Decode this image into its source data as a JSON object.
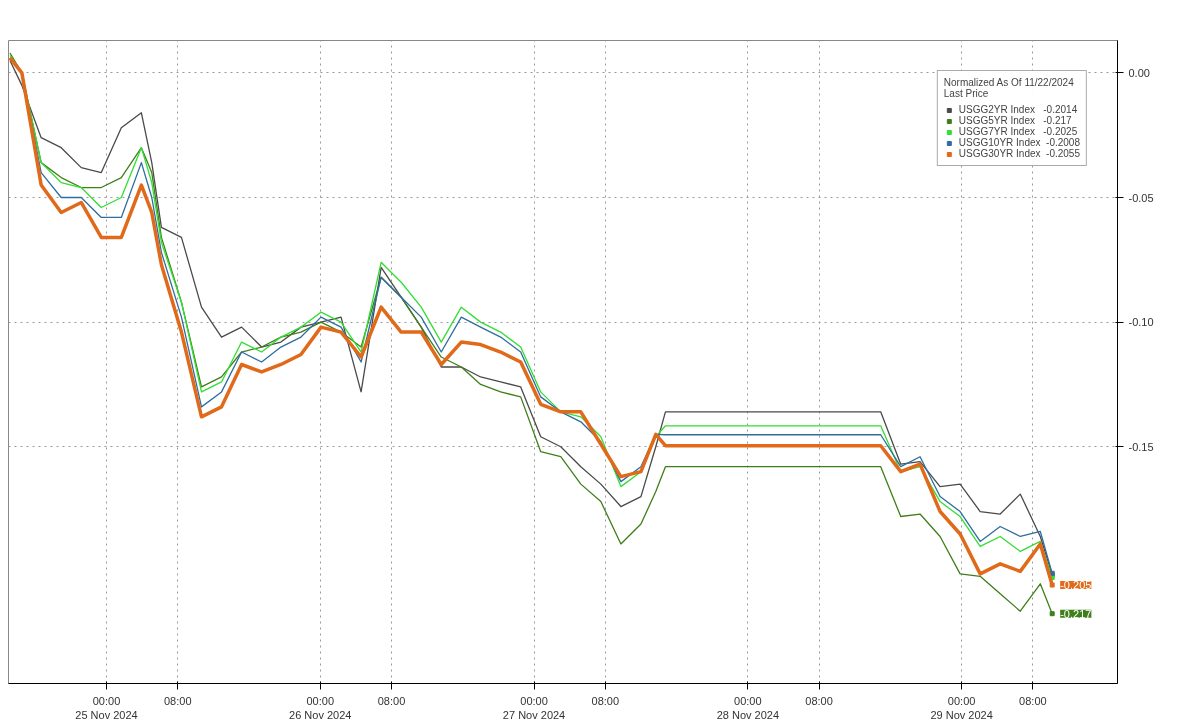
{
  "chart_data": {
    "type": "line",
    "legend_title": "Normalized As Of 11/22/2024\nLast Price",
    "legend": "top right",
    "grid": true,
    "line_style": "solid",
    "x": [
      "2024-11-24T13:10",
      "2024-11-24T14:30",
      "2024-11-24T16:40",
      "2024-11-24T18:55",
      "2024-11-24T21:10",
      "2024-11-24T23:25",
      "2024-11-25T01:40",
      "2024-11-25T03:55",
      "2024-11-25T05:05",
      "2024-11-25T06:10",
      "2024-11-25T08:25",
      "2024-11-25T10:40",
      "2024-11-25T12:55",
      "2024-11-25T15:10",
      "2024-11-25T17:25",
      "2024-11-25T19:35",
      "2024-11-25T21:50",
      "2024-11-26T00:05",
      "2024-11-26T02:20",
      "2024-11-26T04:35",
      "2024-11-26T06:50",
      "2024-11-26T09:05",
      "2024-11-26T11:20",
      "2024-11-26T13:35",
      "2024-11-26T15:50",
      "2024-11-26T18:00",
      "2024-11-26T20:15",
      "2024-11-26T22:30",
      "2024-11-27T00:45",
      "2024-11-27T03:00",
      "2024-11-27T05:15",
      "2024-11-27T07:30",
      "2024-11-27T09:45",
      "2024-11-27T12:00",
      "2024-11-27T13:40",
      "2024-11-27T14:45",
      "2024-11-28T14:55",
      "2024-11-28T17:10",
      "2024-11-28T19:20",
      "2024-11-28T21:35",
      "2024-11-28T23:50",
      "2024-11-29T02:05",
      "2024-11-29T04:20",
      "2024-11-29T06:35",
      "2024-11-29T08:50",
      "2024-11-29T10:10"
    ],
    "series": [
      {
        "name": "USGG2YR Index   -0.2014",
        "color": "#4a4a4a",
        "values": [
          0.005,
          -0.005,
          -0.026,
          -0.03,
          -0.038,
          -0.04,
          -0.022,
          -0.016,
          -0.036,
          -0.062,
          -0.066,
          -0.094,
          -0.106,
          -0.102,
          -0.11,
          -0.108,
          -0.102,
          -0.1,
          -0.098,
          -0.128,
          -0.078,
          -0.09,
          -0.102,
          -0.118,
          -0.118,
          -0.122,
          -0.124,
          -0.126,
          -0.146,
          -0.15,
          -0.158,
          -0.165,
          -0.174,
          -0.17,
          -0.15,
          -0.136,
          -0.136,
          -0.157,
          -0.156,
          -0.166,
          -0.165,
          -0.176,
          -0.177,
          -0.169,
          -0.186,
          -0.2014
        ]
      },
      {
        "name": "USGG5YR Index   -0.217",
        "color": "#3f7f1a",
        "values": [
          0.008,
          0.0,
          -0.036,
          -0.042,
          -0.046,
          -0.046,
          -0.042,
          -0.03,
          -0.04,
          -0.066,
          -0.092,
          -0.126,
          -0.122,
          -0.112,
          -0.11,
          -0.106,
          -0.104,
          -0.1,
          -0.104,
          -0.11,
          -0.082,
          -0.09,
          -0.102,
          -0.114,
          -0.118,
          -0.125,
          -0.128,
          -0.13,
          -0.152,
          -0.154,
          -0.165,
          -0.172,
          -0.189,
          -0.181,
          -0.168,
          -0.158,
          -0.158,
          -0.178,
          -0.177,
          -0.186,
          -0.201,
          -0.202,
          -0.209,
          -0.216,
          -0.205,
          -0.217
        ]
      },
      {
        "name": "USGG7YR Index   -0.2025",
        "color": "#33dd33",
        "values": [
          0.007,
          0.0,
          -0.036,
          -0.044,
          -0.046,
          -0.054,
          -0.05,
          -0.03,
          -0.044,
          -0.068,
          -0.092,
          -0.128,
          -0.124,
          -0.108,
          -0.112,
          -0.106,
          -0.102,
          -0.096,
          -0.1,
          -0.112,
          -0.076,
          -0.084,
          -0.094,
          -0.108,
          -0.094,
          -0.1,
          -0.104,
          -0.11,
          -0.128,
          -0.136,
          -0.138,
          -0.146,
          -0.166,
          -0.16,
          -0.146,
          -0.1416,
          -0.1416,
          -0.16,
          -0.158,
          -0.172,
          -0.178,
          -0.19,
          -0.186,
          -0.192,
          -0.188,
          -0.2025
        ]
      },
      {
        "name": "USGG10YR Index  -0.2008",
        "color": "#2e6e9e",
        "values": [
          0.006,
          0.0,
          -0.04,
          -0.05,
          -0.05,
          -0.058,
          -0.058,
          -0.036,
          -0.05,
          -0.072,
          -0.098,
          -0.134,
          -0.128,
          -0.112,
          -0.116,
          -0.11,
          -0.106,
          -0.098,
          -0.102,
          -0.116,
          -0.082,
          -0.09,
          -0.098,
          -0.112,
          -0.098,
          -0.102,
          -0.106,
          -0.112,
          -0.13,
          -0.136,
          -0.14,
          -0.148,
          -0.164,
          -0.158,
          -0.145,
          -0.1452,
          -0.1452,
          -0.158,
          -0.154,
          -0.17,
          -0.176,
          -0.188,
          -0.182,
          -0.186,
          -0.184,
          -0.2008
        ]
      },
      {
        "name": "USGG30YR Index  -0.2055",
        "color": "#e06a1a",
        "values": [
          0.006,
          0.0,
          -0.045,
          -0.056,
          -0.052,
          -0.066,
          -0.066,
          -0.045,
          -0.056,
          -0.077,
          -0.104,
          -0.138,
          -0.134,
          -0.117,
          -0.12,
          -0.117,
          -0.113,
          -0.102,
          -0.104,
          -0.114,
          -0.094,
          -0.104,
          -0.104,
          -0.117,
          -0.108,
          -0.109,
          -0.112,
          -0.116,
          -0.133,
          -0.136,
          -0.136,
          -0.149,
          -0.162,
          -0.16,
          -0.145,
          -0.1496,
          -0.1496,
          -0.16,
          -0.157,
          -0.176,
          -0.185,
          -0.201,
          -0.197,
          -0.2,
          -0.189,
          -0.2055
        ]
      }
    ],
    "xlim": [
      "2024-11-24T13:00",
      "2024-11-29T17:30"
    ],
    "xticks": [
      {
        "value": "2024-11-25T00:00",
        "label": "00:00\n25 Nov 2024"
      },
      {
        "value": "2024-11-25T08:00",
        "label": "08:00"
      },
      {
        "value": "2024-11-26T00:00",
        "label": "00:00\n26 Nov 2024"
      },
      {
        "value": "2024-11-26T08:00",
        "label": "08:00"
      },
      {
        "value": "2024-11-27T00:00",
        "label": "00:00\n27 Nov 2024"
      },
      {
        "value": "2024-11-27T08:00",
        "label": "08:00"
      },
      {
        "value": "2024-11-28T00:00",
        "label": "00:00\n28 Nov 2024"
      },
      {
        "value": "2024-11-28T08:00",
        "label": "08:00"
      },
      {
        "value": "2024-11-29T00:00",
        "label": "00:00\n29 Nov 2024"
      },
      {
        "value": "2024-11-29T08:00",
        "label": "08:00"
      }
    ],
    "ylim": [
      -0.245,
      0.013
    ],
    "yticks": [
      {
        "value": 0,
        "label": "0.00"
      },
      {
        "value": -0.05,
        "label": "-0.05"
      },
      {
        "value": -0.1,
        "label": "-0.10"
      },
      {
        "value": -0.15,
        "label": "-0.15"
      }
    ],
    "annotations": [
      {
        "text": "-0.205",
        "x": "2024-11-29T10:10",
        "y": -0.2055
      },
      {
        "text": "-0.217",
        "x": "2024-11-29T10:10",
        "y": -0.217
      }
    ]
  }
}
